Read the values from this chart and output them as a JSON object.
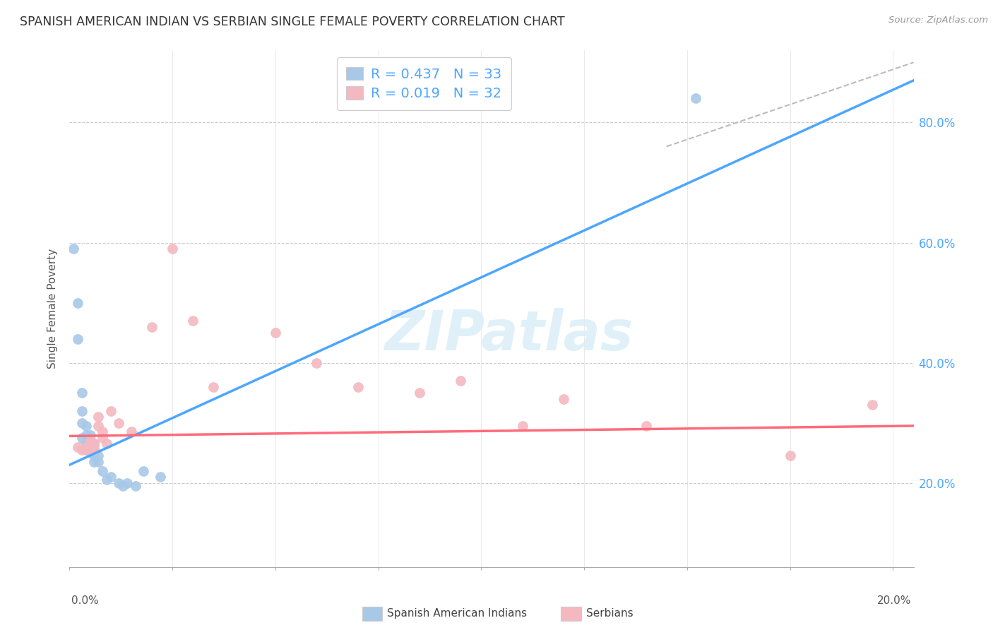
{
  "title": "SPANISH AMERICAN INDIAN VS SERBIAN SINGLE FEMALE POVERTY CORRELATION CHART",
  "source": "Source: ZipAtlas.com",
  "ylabel": "Single Female Poverty",
  "watermark": "ZIPatlas",
  "legend": {
    "blue_r": "R = 0.437",
    "blue_n": "N = 33",
    "pink_r": "R = 0.019",
    "pink_n": "N = 32"
  },
  "blue_color": "#a8c8e8",
  "pink_color": "#f4b8c0",
  "blue_line_color": "#4da6ff",
  "pink_line_color": "#ff6b7a",
  "dashed_line_color": "#bbbbbb",
  "background_color": "#ffffff",
  "grid_color": "#cccccc",
  "blue_scatter_x": [
    0.001,
    0.002,
    0.002,
    0.003,
    0.003,
    0.003,
    0.003,
    0.004,
    0.004,
    0.004,
    0.004,
    0.005,
    0.005,
    0.005,
    0.005,
    0.005,
    0.005,
    0.006,
    0.006,
    0.006,
    0.006,
    0.007,
    0.007,
    0.008,
    0.009,
    0.01,
    0.012,
    0.013,
    0.014,
    0.016,
    0.018,
    0.022,
    0.152
  ],
  "blue_scatter_y": [
    0.59,
    0.5,
    0.44,
    0.35,
    0.32,
    0.3,
    0.275,
    0.295,
    0.28,
    0.265,
    0.26,
    0.28,
    0.27,
    0.265,
    0.26,
    0.255,
    0.25,
    0.265,
    0.255,
    0.245,
    0.235,
    0.245,
    0.235,
    0.22,
    0.205,
    0.21,
    0.2,
    0.195,
    0.2,
    0.195,
    0.22,
    0.21,
    0.84
  ],
  "pink_scatter_x": [
    0.002,
    0.003,
    0.004,
    0.004,
    0.005,
    0.005,
    0.005,
    0.006,
    0.006,
    0.006,
    0.007,
    0.007,
    0.008,
    0.008,
    0.009,
    0.01,
    0.012,
    0.015,
    0.02,
    0.025,
    0.03,
    0.035,
    0.05,
    0.06,
    0.07,
    0.085,
    0.095,
    0.11,
    0.12,
    0.14,
    0.175,
    0.195
  ],
  "pink_scatter_y": [
    0.26,
    0.255,
    0.26,
    0.255,
    0.27,
    0.26,
    0.255,
    0.265,
    0.26,
    0.255,
    0.31,
    0.295,
    0.285,
    0.275,
    0.265,
    0.32,
    0.3,
    0.285,
    0.46,
    0.59,
    0.47,
    0.36,
    0.45,
    0.4,
    0.36,
    0.35,
    0.37,
    0.295,
    0.34,
    0.295,
    0.245,
    0.33
  ],
  "xlim": [
    0.0,
    0.205
  ],
  "ylim": [
    0.06,
    0.92
  ],
  "yticks": [
    0.2,
    0.4,
    0.6,
    0.8
  ],
  "ytick_right_labels": [
    "20.0%",
    "40.0%",
    "60.0%",
    "80.0%"
  ],
  "xticks": [
    0.0,
    0.025,
    0.05,
    0.075,
    0.1,
    0.125,
    0.15,
    0.175,
    0.2
  ],
  "blue_line_x": [
    0.0,
    0.205
  ],
  "blue_line_y": [
    0.23,
    0.87
  ],
  "pink_line_x": [
    0.0,
    0.205
  ],
  "pink_line_y": [
    0.278,
    0.295
  ],
  "dash_line_x": [
    0.145,
    0.205
  ],
  "dash_line_y": [
    0.76,
    0.9
  ]
}
